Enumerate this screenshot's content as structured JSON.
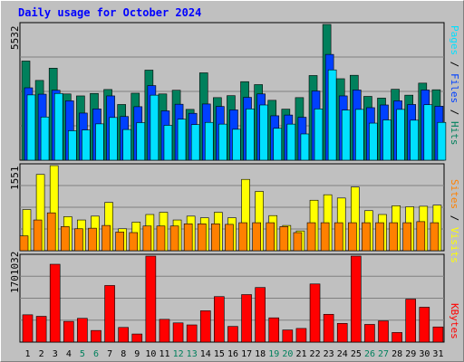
{
  "title": "Daily usage for October 2024",
  "chart_data": {
    "type": "bar",
    "title": "Daily usage for October 2024",
    "categories": [
      "1",
      "2",
      "3",
      "4",
      "5",
      "6",
      "7",
      "8",
      "9",
      "10",
      "11",
      "12",
      "13",
      "14",
      "15",
      "16",
      "17",
      "18",
      "19",
      "20",
      "21",
      "22",
      "23",
      "24",
      "25",
      "26",
      "27",
      "28",
      "29",
      "30",
      "31"
    ],
    "weekend_days": [
      "5",
      "6",
      "12",
      "13",
      "19",
      "20",
      "26",
      "27"
    ],
    "panels": [
      {
        "max_label": "5532",
        "ylim": [
          0,
          5532
        ],
        "series": [
          {
            "name": "Hits",
            "color": "#00805c",
            "values": [
              4040,
              3250,
              3750,
              2700,
              2620,
              2720,
              2880,
              2270,
              2730,
              3670,
              2700,
              2850,
              2070,
              3560,
              2550,
              2630,
              3200,
              3080,
              2440,
              2080,
              2550,
              3450,
              5532,
              3320,
              3460,
              2600,
              2530,
              2890,
              2650,
              3140,
              2870
            ]
          },
          {
            "name": "Files",
            "color": "#0040ff",
            "values": [
              2950,
              2690,
              2850,
              2420,
              1920,
              2090,
              2620,
              1780,
              2180,
              3040,
              2010,
              2280,
              1910,
              2290,
              2190,
              2050,
              2560,
              2700,
              1810,
              1840,
              1750,
              2820,
              4310,
              2620,
              2860,
              2140,
              2250,
              2420,
              2270,
              2860,
              2200
            ]
          },
          {
            "name": "Pages",
            "color": "#00e0ff",
            "values": [
              2660,
              1760,
              2720,
              1200,
              1230,
              1480,
              1740,
              1250,
              1530,
              2650,
              1420,
              1670,
              1450,
              1540,
              1470,
              1260,
              2090,
              2250,
              1300,
              1470,
              1070,
              2090,
              3680,
              2040,
              2070,
              1510,
              1640,
              2070,
              1630,
              2260,
              1540
            ]
          }
        ],
        "legend": [
          "Pages",
          "Files",
          "Hits"
        ]
      },
      {
        "max_label": "1551",
        "ylim": [
          0,
          1551
        ],
        "series": [
          {
            "name": "Visits",
            "color": "#ffff00",
            "values": [
              750,
              1390,
              1551,
              620,
              560,
              630,
              880,
              400,
              520,
              660,
              700,
              560,
              630,
              600,
              700,
              600,
              1300,
              1080,
              640,
              460,
              360,
              920,
              1020,
              960,
              1160,
              730,
              660,
              820,
              800,
              810,
              830
            ]
          },
          {
            "name": "Sites",
            "color": "#ff8000",
            "values": [
              270,
              560,
              690,
              440,
              400,
              410,
              460,
              340,
              330,
              450,
              450,
              450,
              490,
              490,
              490,
              480,
              510,
              510,
              510,
              440,
              330,
              510,
              510,
              510,
              510,
              510,
              510,
              510,
              510,
              530,
              510
            ]
          }
        ],
        "legend": [
          "Sites",
          "Visits"
        ]
      },
      {
        "max_label": "1701032",
        "ylim": [
          0,
          1701032
        ],
        "series": [
          {
            "name": "KBytes",
            "color": "#ff0000",
            "values": [
              540000,
              510000,
              1540000,
              410000,
              470000,
              230000,
              1120000,
              290000,
              160000,
              1701032,
              450000,
              380000,
              340000,
              620000,
              900000,
              310000,
              940000,
              1080000,
              480000,
              240000,
              270000,
              1150000,
              550000,
              370000,
              1701032,
              350000,
              420000,
              190000,
              850000,
              690000,
              300000
            ]
          }
        ],
        "legend": [
          "KBytes"
        ]
      }
    ]
  }
}
